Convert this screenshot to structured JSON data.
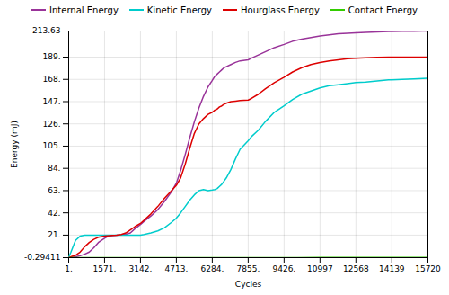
{
  "chart_data": {
    "type": "line",
    "xlabel": "Cycles",
    "ylabel": "Energy (mJ)",
    "xlim": [
      1,
      15720
    ],
    "ylim": [
      -0.29411,
      213.63
    ],
    "xticks": [
      {
        "value": 1,
        "label": "1."
      },
      {
        "value": 1571,
        "label": "1571."
      },
      {
        "value": 3142,
        "label": "3142."
      },
      {
        "value": 4713,
        "label": "4713."
      },
      {
        "value": 6284,
        "label": "6284."
      },
      {
        "value": 7855,
        "label": "7855."
      },
      {
        "value": 9426,
        "label": "9426."
      },
      10997,
      12568,
      14139,
      15720
    ],
    "yticks": [
      -0.29411,
      {
        "value": 21,
        "label": "21."
      },
      {
        "value": 42,
        "label": "42."
      },
      {
        "value": 63,
        "label": "63."
      },
      {
        "value": 84,
        "label": "84."
      },
      {
        "value": 105,
        "label": "105."
      },
      {
        "value": 126,
        "label": "126."
      },
      {
        "value": 147,
        "label": "147."
      },
      {
        "value": 168,
        "label": "168."
      },
      {
        "value": 189,
        "label": "189."
      },
      213.63
    ],
    "grid": true,
    "legend": "top",
    "series": [
      {
        "name": "Internal Energy",
        "color": "#993399",
        "x": [
          1,
          100,
          300,
          500,
          700,
          900,
          1100,
          1300,
          1571,
          1700,
          1900,
          2100,
          2300,
          2500,
          2700,
          2900,
          3142,
          3300,
          3600,
          3900,
          4200,
          4500,
          4713,
          4900,
          5100,
          5300,
          5500,
          5700,
          5900,
          6100,
          6284,
          6400,
          6500,
          6600,
          6700,
          6800,
          6900,
          7100,
          7300,
          7500,
          7855,
          8000,
          8300,
          8600,
          9000,
          9426,
          9800,
          10200,
          10600,
          10997,
          11400,
          11800,
          12200,
          12568,
          13000,
          13500,
          14000,
          14139,
          14600,
          15100,
          15500,
          15720
        ],
        "values": [
          -0.29411,
          -0.2,
          0.5,
          1.5,
          3,
          5,
          9,
          14,
          18,
          19.5,
          20.5,
          21,
          21.3,
          21.8,
          23,
          27,
          31,
          34,
          39,
          45,
          53,
          62,
          70,
          82,
          97,
          113,
          128,
          141,
          152,
          161,
          167,
          171,
          173,
          175,
          177,
          179,
          180,
          182,
          184,
          185.5,
          186.5,
          188,
          191,
          194,
          198,
          201,
          204,
          206,
          207.5,
          209,
          210,
          211,
          211.5,
          212,
          212.3,
          212.7,
          213.1,
          213.2,
          213.35,
          213.5,
          213.58,
          213.63
        ]
      },
      {
        "name": "Kinetic Energy",
        "color": "#00cccc",
        "x": [
          1,
          100,
          300,
          500,
          700,
          900,
          1100,
          1300,
          1571,
          1700,
          1900,
          2100,
          2300,
          2500,
          2700,
          2900,
          3142,
          3300,
          3600,
          3900,
          4200,
          4500,
          4713,
          4900,
          5100,
          5300,
          5500,
          5700,
          5900,
          6100,
          6284,
          6400,
          6500,
          6600,
          6700,
          6800,
          6900,
          7100,
          7300,
          7500,
          7855,
          8000,
          8300,
          8600,
          9000,
          9426,
          9800,
          10200,
          10600,
          10997,
          11400,
          11800,
          12200,
          12568,
          13000,
          13500,
          14000,
          14139,
          14600,
          15100,
          15500,
          15720
        ],
        "values": [
          0,
          5,
          16,
          20,
          21,
          21,
          21,
          21,
          21,
          21,
          21,
          21,
          21,
          21,
          21,
          21,
          21,
          21.5,
          23,
          25,
          28,
          33,
          37,
          42,
          48,
          54,
          59,
          63,
          64,
          63,
          63.5,
          64,
          65,
          67,
          69,
          72,
          75,
          83,
          93,
          102,
          110,
          114,
          120,
          128,
          137,
          143,
          149,
          154,
          157,
          160,
          162,
          163,
          164,
          165,
          165.5,
          166.5,
          167.5,
          167.5,
          168,
          168.5,
          168.8,
          169
        ]
      },
      {
        "name": "Hourglass Energy",
        "color": "#dd0000",
        "x": [
          1,
          100,
          300,
          500,
          700,
          900,
          1100,
          1300,
          1571,
          1700,
          1900,
          2100,
          2300,
          2500,
          2700,
          2900,
          3142,
          3300,
          3600,
          3900,
          4200,
          4500,
          4713,
          4900,
          5100,
          5300,
          5500,
          5700,
          5900,
          6100,
          6284,
          6400,
          6500,
          6600,
          6700,
          6800,
          6900,
          7100,
          7300,
          7500,
          7855,
          8000,
          8300,
          8600,
          9000,
          9426,
          9800,
          10200,
          10600,
          10997,
          11400,
          11800,
          12200,
          12568,
          13000,
          13500,
          14000,
          14139,
          14600,
          15100,
          15500,
          15720
        ],
        "values": [
          -0.29411,
          0.5,
          2,
          5,
          10,
          14,
          17,
          19,
          20,
          20.3,
          20.7,
          21,
          21.5,
          23,
          26,
          29,
          32,
          35,
          41,
          48,
          56,
          63,
          68,
          75,
          88,
          103,
          117,
          126,
          131,
          135,
          137,
          139,
          140,
          142,
          143,
          144.5,
          145.5,
          147,
          147.5,
          148,
          148.5,
          150,
          154,
          159,
          165,
          170,
          175,
          179,
          182,
          184,
          185.5,
          186.5,
          187.5,
          188,
          188.3,
          188.7,
          189,
          189,
          189,
          189,
          189,
          189
        ]
      },
      {
        "name": "Contact Energy",
        "color": "#33cc00",
        "x": [
          1,
          1571,
          3142,
          4713,
          6284,
          7855,
          9426,
          10000,
          10997,
          12568,
          14139,
          15720
        ],
        "values": [
          -0.29411,
          -0.29411,
          -0.29411,
          -0.29411,
          -0.29411,
          -0.29411,
          -0.29411,
          -0.29411,
          -0.1,
          -0.1,
          -0.1,
          -0.1
        ]
      }
    ]
  }
}
